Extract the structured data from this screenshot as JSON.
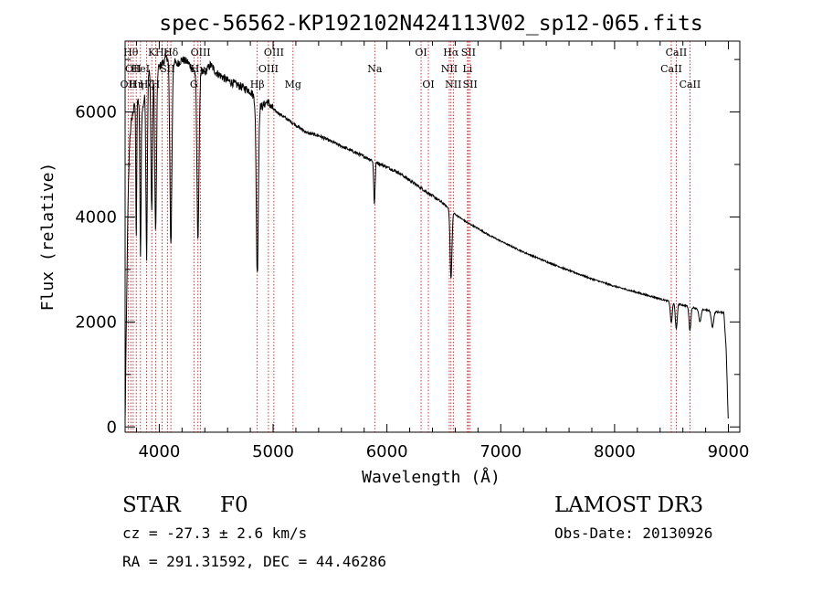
{
  "chart_data": {
    "type": "line",
    "title": "spec-56562-KP192102N424113V02_sp12-065.fits",
    "xlabel": "Wavelength (Å)",
    "ylabel": "Flux (relative)",
    "xlim": [
      3700,
      9100
    ],
    "ylim": [
      -100,
      7350
    ],
    "x_ticks": [
      4000,
      5000,
      6000,
      7000,
      8000,
      9000
    ],
    "x_tick_labels": [
      "4000",
      "5000",
      "6000",
      "7000",
      "8000",
      "9000"
    ],
    "y_ticks": [
      0,
      2000,
      4000,
      6000
    ],
    "y_tick_labels": [
      "0",
      "2000",
      "4000",
      "6000"
    ],
    "grid": false,
    "spectrum": {
      "name": "Flux",
      "continuum_points": [
        [
          3700,
          100
        ],
        [
          3710,
          1800
        ],
        [
          3725,
          4200
        ],
        [
          3740,
          5500
        ],
        [
          3760,
          5900
        ],
        [
          3800,
          6300
        ],
        [
          3850,
          6000
        ],
        [
          3900,
          6700
        ],
        [
          3950,
          7000
        ],
        [
          4000,
          6850
        ],
        [
          4050,
          7000
        ],
        [
          4100,
          7100
        ],
        [
          4150,
          6900
        ],
        [
          4200,
          7000
        ],
        [
          4250,
          6950
        ],
        [
          4300,
          6800
        ],
        [
          4400,
          6750
        ],
        [
          4450,
          6900
        ],
        [
          4500,
          6750
        ],
        [
          4600,
          6600
        ],
        [
          4700,
          6500
        ],
        [
          4800,
          6400
        ],
        [
          4830,
          6300
        ],
        [
          4900,
          6100
        ],
        [
          4950,
          6200
        ],
        [
          5000,
          6050
        ],
        [
          5100,
          5900
        ],
        [
          5200,
          5750
        ],
        [
          5300,
          5600
        ],
        [
          5400,
          5550
        ],
        [
          5500,
          5450
        ],
        [
          5600,
          5350
        ],
        [
          5700,
          5250
        ],
        [
          5800,
          5150
        ],
        [
          5900,
          5050
        ],
        [
          6000,
          4950
        ],
        [
          6100,
          4850
        ],
        [
          6200,
          4700
        ],
        [
          6300,
          4550
        ],
        [
          6400,
          4400
        ],
        [
          6500,
          4250
        ],
        [
          6600,
          4050
        ],
        [
          6700,
          3900
        ],
        [
          6800,
          3780
        ],
        [
          6900,
          3650
        ],
        [
          7000,
          3540
        ],
        [
          7200,
          3330
        ],
        [
          7400,
          3150
        ],
        [
          7600,
          2980
        ],
        [
          7800,
          2820
        ],
        [
          8000,
          2680
        ],
        [
          8200,
          2560
        ],
        [
          8400,
          2440
        ],
        [
          8500,
          2380
        ],
        [
          8600,
          2320
        ],
        [
          8700,
          2270
        ],
        [
          8800,
          2230
        ],
        [
          8900,
          2190
        ],
        [
          8960,
          2180
        ],
        [
          8980,
          1500
        ],
        [
          9000,
          0
        ]
      ],
      "absorption_lines": [
        [
          3798,
          2700,
          4
        ],
        [
          3835,
          2900,
          5
        ],
        [
          3889,
          3300,
          6
        ],
        [
          3934,
          2800,
          7
        ],
        [
          3968,
          3200,
          8
        ],
        [
          4102,
          3600,
          9
        ],
        [
          4340,
          3200,
          9
        ],
        [
          4861,
          3300,
          9
        ],
        [
          5890,
          800,
          6
        ],
        [
          6563,
          1300,
          8
        ],
        [
          8498,
          400,
          8
        ],
        [
          8542,
          500,
          8
        ],
        [
          8662,
          450,
          8
        ],
        [
          8750,
          250,
          10
        ],
        [
          8860,
          300,
          10
        ]
      ]
    },
    "line_markers": [
      {
        "wavelength": 3727,
        "label": "OII",
        "row": 2
      },
      {
        "wavelength": 3750,
        "label": "Hθ",
        "row": 0
      },
      {
        "wavelength": 3771,
        "label": "OII",
        "row": 1
      },
      {
        "wavelength": 3798,
        "label": "Hη",
        "row": 2
      },
      {
        "wavelength": 3835,
        "label": "HeI",
        "row": 1
      },
      {
        "wavelength": 3889,
        "label": "Hζ",
        "row": 2
      },
      {
        "wavelength": 3934,
        "label": "K",
        "row": 0
      },
      {
        "wavelength": 3968,
        "label": "H",
        "row": 2
      },
      {
        "wavelength": 4026,
        "label": "Hε",
        "row": 0
      },
      {
        "wavelength": 4072,
        "label": "SII",
        "row": 1
      },
      {
        "wavelength": 4102,
        "label": "Hδ",
        "row": 0
      },
      {
        "wavelength": 4304,
        "label": "G",
        "row": 2
      },
      {
        "wavelength": 4340,
        "label": "Hγ",
        "row": 1
      },
      {
        "wavelength": 4363,
        "label": "OIII",
        "row": 0
      },
      {
        "wavelength": 4861,
        "label": "Hβ",
        "row": 2
      },
      {
        "wavelength": 4959,
        "label": "OIII",
        "row": 1
      },
      {
        "wavelength": 5007,
        "label": "OIII",
        "row": 0
      },
      {
        "wavelength": 5175,
        "label": "Mg",
        "row": 2
      },
      {
        "wavelength": 5893,
        "label": "Na",
        "row": 1
      },
      {
        "wavelength": 6300,
        "label": "OI",
        "row": 0
      },
      {
        "wavelength": 6364,
        "label": "OI",
        "row": 2
      },
      {
        "wavelength": 6548,
        "label": "NII",
        "row": 1
      },
      {
        "wavelength": 6563,
        "label": "Hα",
        "row": 0
      },
      {
        "wavelength": 6583,
        "label": "NII",
        "row": 2
      },
      {
        "wavelength": 6708,
        "label": "Li",
        "row": 1
      },
      {
        "wavelength": 6716,
        "label": "SII",
        "row": 0
      },
      {
        "wavelength": 6731,
        "label": "SII",
        "row": 2
      },
      {
        "wavelength": 8498,
        "label": "CaII",
        "row": 1
      },
      {
        "wavelength": 8542,
        "label": "CaII",
        "row": 0
      },
      {
        "wavelength": 8662,
        "label": "CaII",
        "row": 2
      }
    ]
  },
  "info": {
    "class_label": "STAR",
    "subclass_label": "F0",
    "survey_label": "LAMOST DR3",
    "velocity": "cz = -27.3 ± 2.6 km/s",
    "obs_date": "Obs-Date: 20130926",
    "coordinates": "RA = 291.31592, DEC =  44.46286"
  }
}
